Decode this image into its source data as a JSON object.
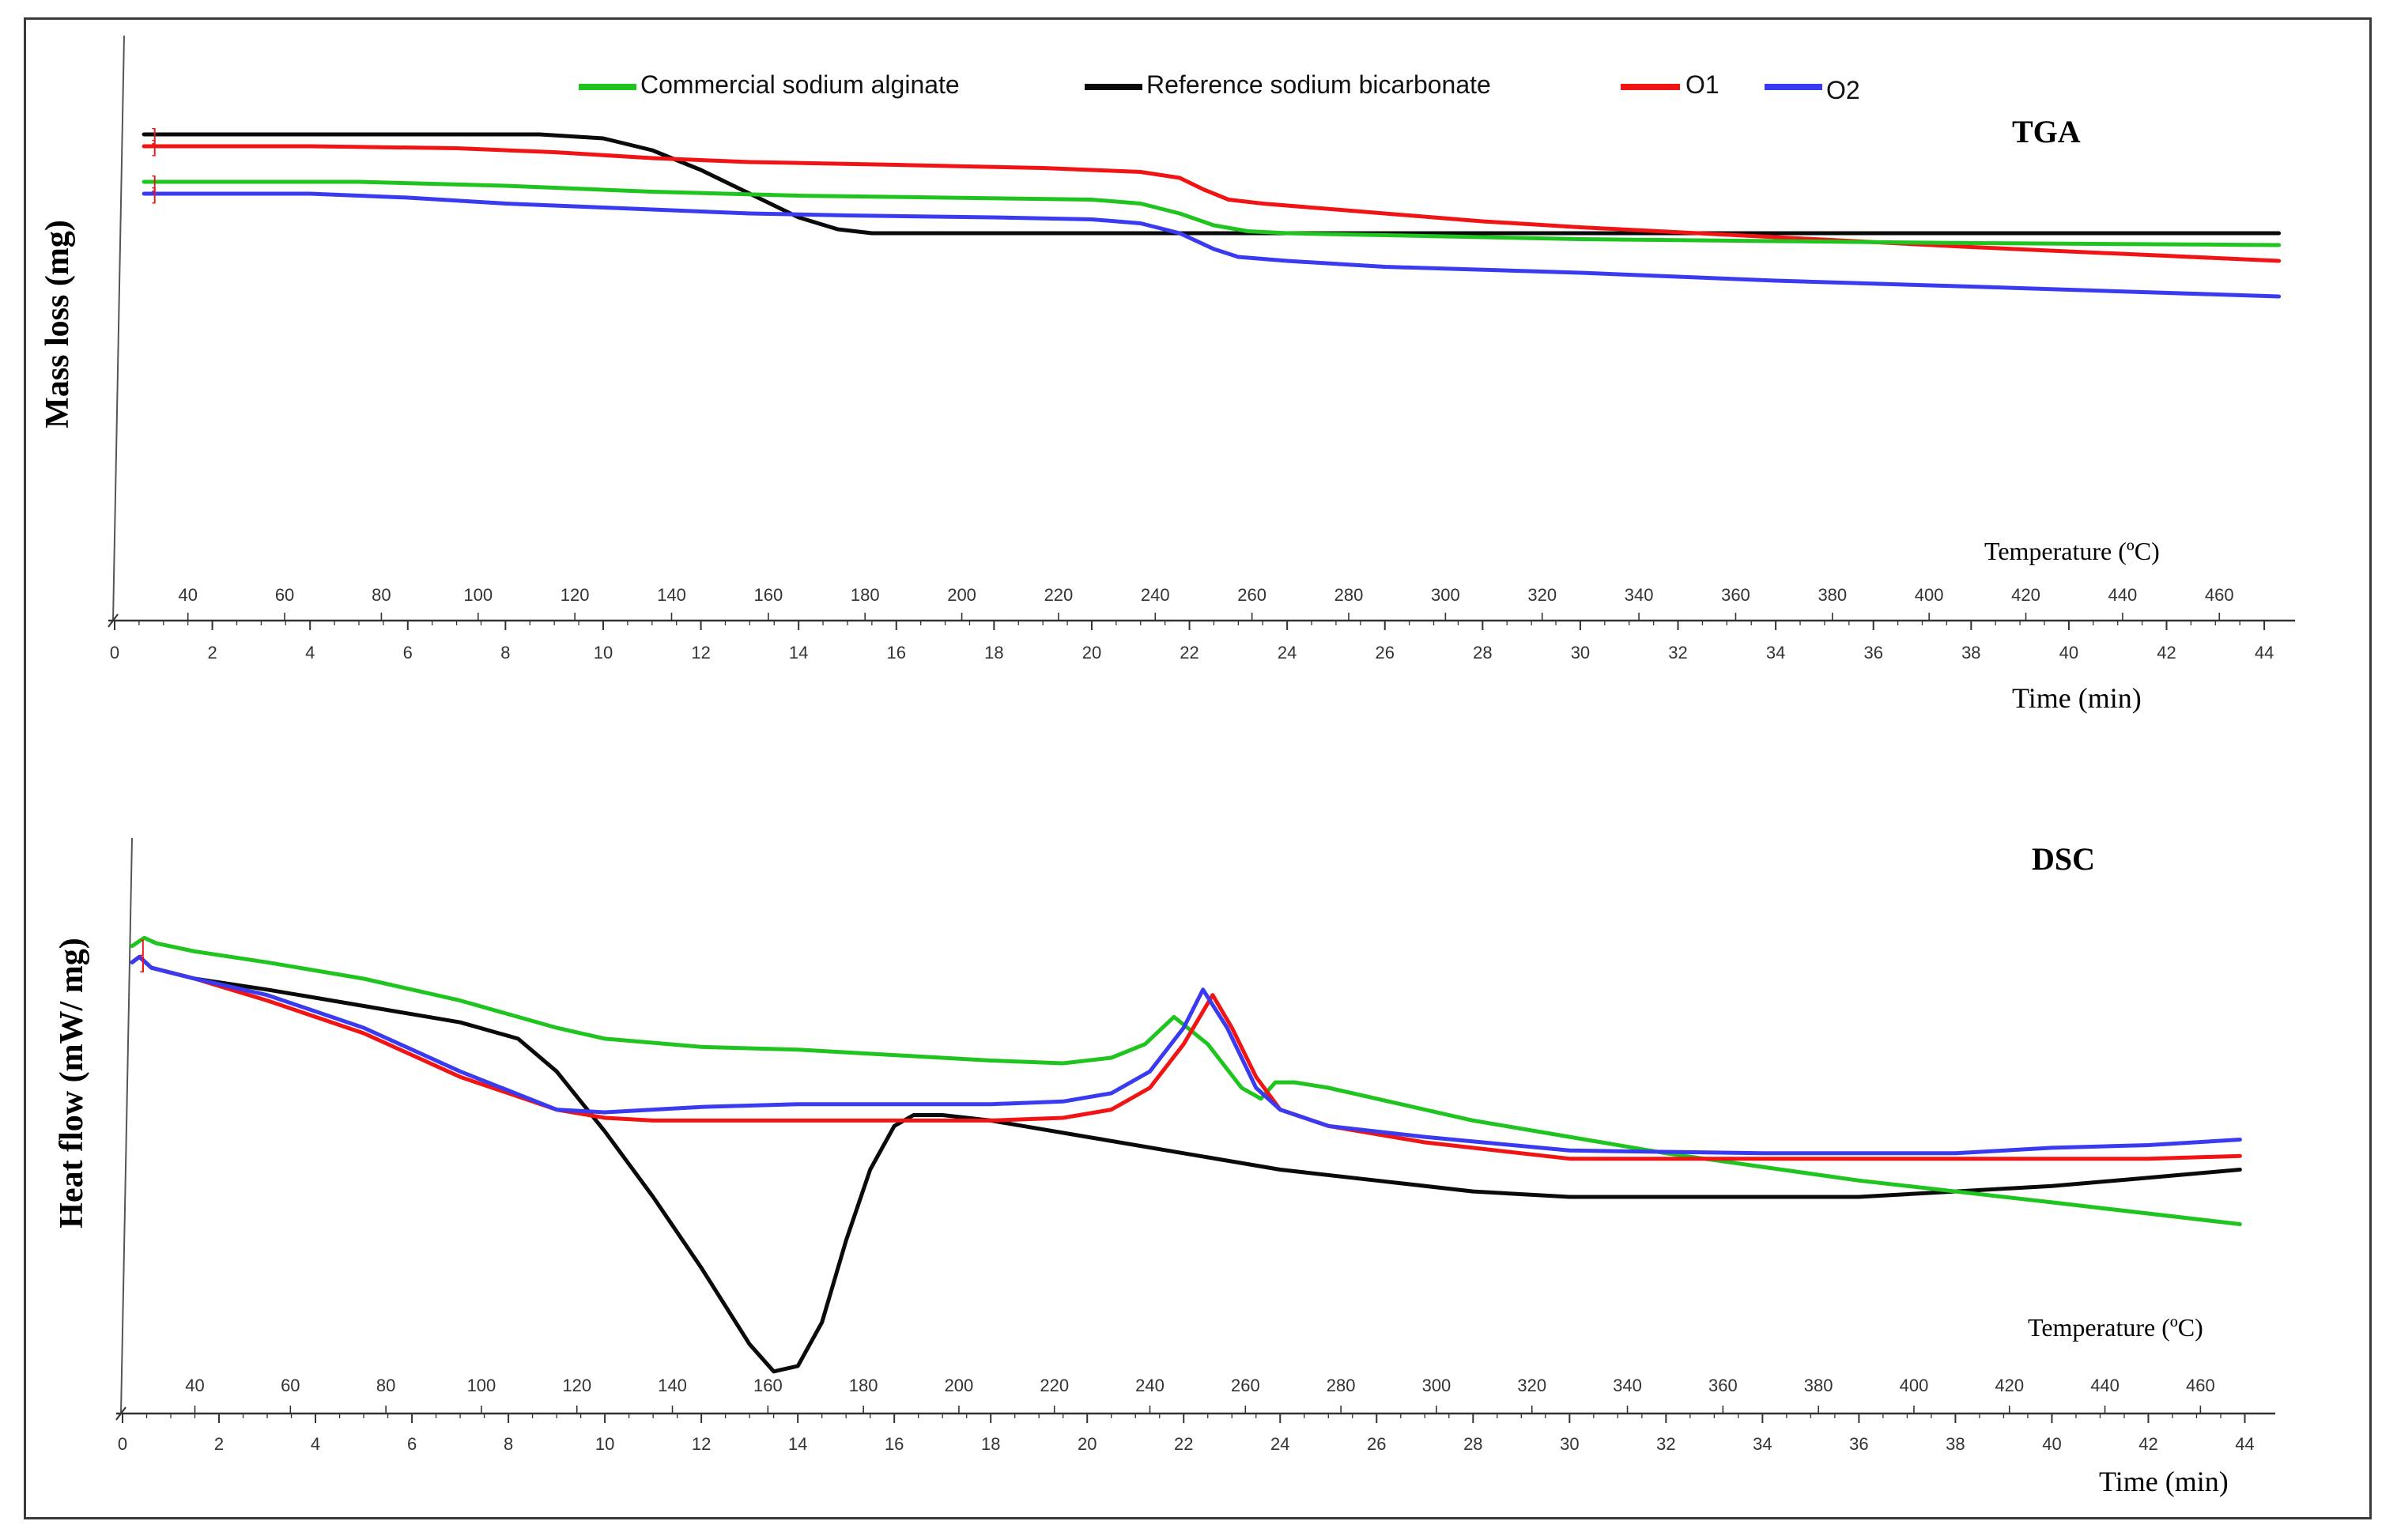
{
  "legend": [
    {
      "name": "Commercial sodium alginate",
      "color": "#1fc41f"
    },
    {
      "name": "Reference sodium bicarbonate",
      "color": "#0a0a0a"
    },
    {
      "name": "O1",
      "color": "#f01414"
    },
    {
      "name": "O2",
      "color": "#3a3af0"
    }
  ],
  "chart_data": [
    {
      "type": "line",
      "title": "TGA",
      "ylabel": "Mass loss (mg)",
      "temp_label": "Temperature (ºC)",
      "time_label": "Time (min)",
      "temp_ticks": [
        40,
        60,
        80,
        100,
        120,
        140,
        160,
        180,
        200,
        220,
        240,
        260,
        280,
        300,
        320,
        340,
        360,
        380,
        400,
        420,
        440,
        460
      ],
      "time_ticks": [
        0,
        2,
        4,
        6,
        8,
        10,
        12,
        14,
        16,
        18,
        20,
        22,
        24,
        26,
        28,
        30,
        32,
        34,
        36,
        38,
        40,
        42,
        44
      ],
      "xlim": [
        0,
        44.5
      ],
      "ylim": [
        0,
        100
      ],
      "series": [
        {
          "name": "Reference sodium bicarbonate",
          "color": "#0a0a0a",
          "x": [
            0.6,
            5,
            8.7,
            10,
            11,
            12,
            13,
            14,
            14.8,
            15.5,
            16,
            20,
            30,
            44.3
          ],
          "y": [
            90,
            90,
            90,
            89,
            86,
            81,
            75,
            69,
            66,
            65,
            65,
            65,
            65,
            65
          ]
        },
        {
          "name": "O1",
          "color": "#f01414",
          "x": [
            0.6,
            4,
            7,
            9,
            11,
            13,
            16,
            19,
            21,
            21.8,
            22.3,
            22.8,
            23.5,
            25,
            27,
            28,
            30,
            34,
            38,
            44.3
          ],
          "y": [
            87,
            87,
            86.5,
            85.5,
            84,
            83,
            82.3,
            81.5,
            80.5,
            79,
            76,
            73.5,
            72.5,
            71,
            69,
            68,
            66.5,
            64,
            61.5,
            58
          ]
        },
        {
          "name": "Commercial sodium alginate",
          "color": "#1fc41f",
          "x": [
            0.6,
            5,
            8,
            11,
            14,
            17,
            20,
            21,
            21.8,
            22.5,
            23.2,
            24,
            26,
            30,
            34,
            38,
            44.3
          ],
          "y": [
            78,
            78,
            77,
            75.5,
            74.5,
            74,
            73.5,
            72.5,
            70,
            67,
            65.5,
            65,
            64.5,
            63.5,
            63,
            62.5,
            62
          ]
        },
        {
          "name": "O2",
          "color": "#3a3af0",
          "x": [
            0.6,
            4,
            6,
            8,
            10,
            13,
            15,
            18,
            20,
            21,
            21.8,
            22.5,
            23,
            24,
            26,
            30,
            34,
            38,
            44.3
          ],
          "y": [
            75,
            75,
            74,
            72.5,
            71.5,
            70,
            69.5,
            69,
            68.5,
            67.5,
            65,
            61,
            59,
            58,
            56.5,
            55,
            53,
            51.5,
            49
          ]
        }
      ]
    },
    {
      "type": "line",
      "title": "DSC",
      "ylabel": "Heat flow (mW/ mg)",
      "temp_label": "Temperature (ºC)",
      "time_label": "Time (min)",
      "temp_ticks": [
        40,
        60,
        80,
        100,
        120,
        140,
        160,
        180,
        200,
        220,
        240,
        260,
        280,
        300,
        320,
        340,
        360,
        380,
        400,
        420,
        440,
        460
      ],
      "time_ticks": [
        0,
        2,
        4,
        6,
        8,
        10,
        12,
        14,
        16,
        18,
        20,
        22,
        24,
        26,
        28,
        30,
        32,
        34,
        36,
        38,
        40,
        42,
        44
      ],
      "xlim": [
        0,
        44.5
      ],
      "ylim": [
        0,
        100
      ],
      "series": [
        {
          "name": "Reference sodium bicarbonate",
          "color": "#0a0a0a",
          "x": [
            0.2,
            0.35,
            0.6,
            1.5,
            3,
            5,
            7,
            8.2,
            9,
            10,
            11,
            12,
            13,
            13.5,
            14,
            14.5,
            15,
            15.5,
            16,
            16.4,
            17,
            18,
            20,
            22,
            24,
            26,
            28,
            30,
            32,
            34,
            36,
            38,
            40,
            42,
            43.9
          ],
          "y": [
            83,
            84,
            82,
            80,
            78,
            75,
            72,
            69,
            63,
            52,
            40,
            27,
            13,
            8,
            9,
            17,
            32,
            45,
            53,
            55,
            55,
            54,
            51,
            48,
            45,
            43,
            41,
            40,
            40,
            40,
            40,
            41,
            42,
            43.5,
            45
          ]
        },
        {
          "name": "Commercial sodium alginate",
          "color": "#1fc41f",
          "x": [
            0.2,
            0.45,
            0.7,
            1.5,
            3,
            5,
            7,
            9,
            10,
            12,
            14,
            16,
            18,
            19.5,
            20.5,
            21.2,
            21.8,
            22.5,
            23.2,
            23.6,
            23.9,
            24.3,
            25,
            28,
            32,
            36,
            40,
            43.9
          ],
          "y": [
            86,
            87.5,
            86.5,
            85,
            83,
            80,
            76,
            71,
            69,
            67.5,
            67,
            66,
            65,
            64.5,
            65.5,
            68,
            73,
            68,
            60,
            58,
            61,
            61,
            60,
            54,
            48,
            43,
            39,
            35
          ]
        },
        {
          "name": "O1",
          "color": "#f01414",
          "x": [
            0.2,
            0.35,
            0.6,
            1.5,
            3,
            5,
            7,
            9,
            10,
            11,
            12,
            14,
            16,
            18,
            19.5,
            20.5,
            21.3,
            22,
            22.6,
            23,
            23.5,
            24,
            25,
            27,
            30,
            34,
            38,
            40,
            42,
            43.9
          ],
          "y": [
            83,
            84,
            82,
            80,
            76,
            70,
            62,
            56,
            54.5,
            54,
            54,
            54,
            54,
            54,
            54.5,
            56,
            60,
            68,
            77,
            71,
            62,
            56,
            53,
            50,
            47,
            47,
            47,
            47,
            47,
            47.5
          ]
        },
        {
          "name": "O2",
          "color": "#3a3af0",
          "x": [
            0.2,
            0.35,
            0.6,
            1.5,
            3,
            5,
            7,
            9,
            10,
            12,
            14,
            16,
            18,
            19.5,
            20.5,
            21.3,
            22,
            22.4,
            22.9,
            23.5,
            24,
            25,
            27,
            30,
            34,
            38,
            40,
            42,
            43.9
          ],
          "y": [
            83,
            84,
            82,
            80,
            77,
            71,
            63,
            56,
            55.5,
            56.5,
            57,
            57,
            57,
            57.5,
            59,
            63,
            71,
            78,
            71,
            60,
            56,
            53,
            51,
            48.5,
            48,
            48,
            49,
            49.5,
            50.5
          ]
        }
      ]
    }
  ]
}
